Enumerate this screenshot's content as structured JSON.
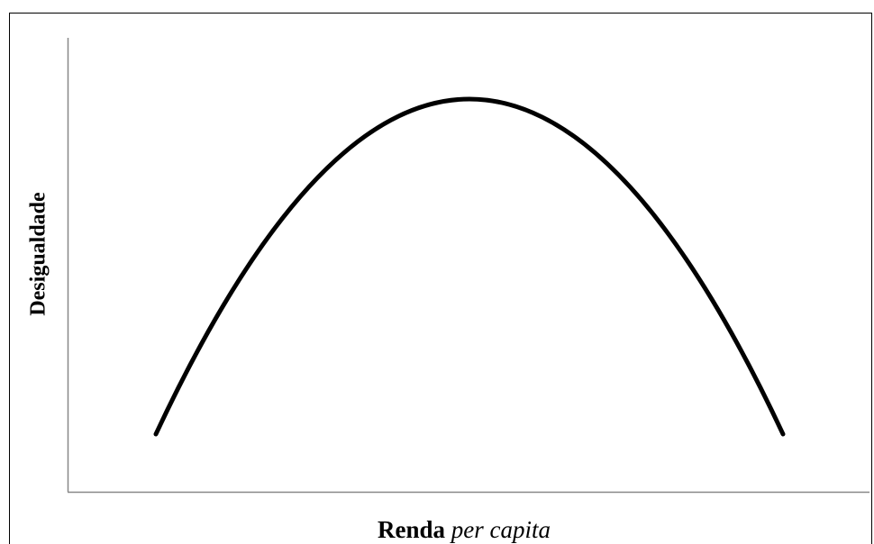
{
  "y_axis_label": "Desigualdade",
  "x_axis_label": [
    "Renda",
    "per capita"
  ]
}
